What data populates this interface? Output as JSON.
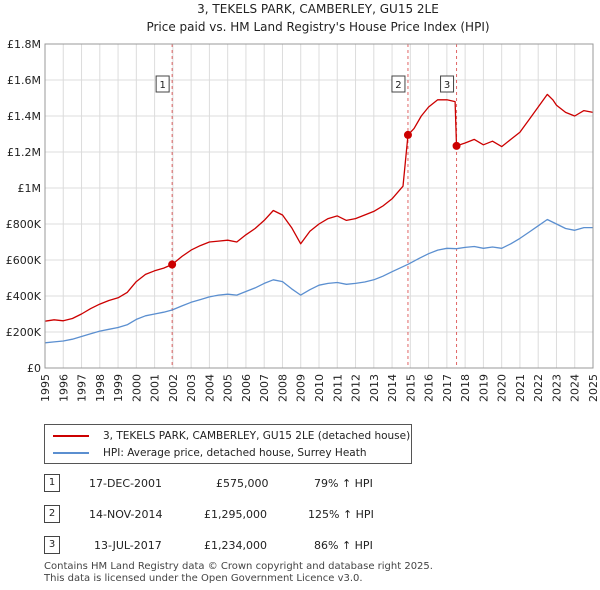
{
  "chart_data": {
    "type": "line",
    "title": "3, TEKELS PARK, CAMBERLEY, GU15 2LE",
    "subtitle": "Price paid vs. HM Land Registry's House Price Index (HPI)",
    "xlim": [
      1995,
      2025
    ],
    "ylim": [
      0,
      1800000
    ],
    "x_ticks": [
      "1995",
      "1996",
      "1997",
      "1998",
      "1999",
      "2000",
      "2001",
      "2002",
      "2003",
      "2004",
      "2005",
      "2006",
      "2007",
      "2008",
      "2009",
      "2010",
      "2011",
      "2012",
      "2013",
      "2014",
      "2015",
      "2016",
      "2017",
      "2018",
      "2019",
      "2020",
      "2021",
      "2022",
      "2023",
      "2024",
      "2025"
    ],
    "y_ticks": [
      {
        "value": 0,
        "label": "£0"
      },
      {
        "value": 200000,
        "label": "£200K"
      },
      {
        "value": 400000,
        "label": "£400K"
      },
      {
        "value": 600000,
        "label": "£600K"
      },
      {
        "value": 800000,
        "label": "£800K"
      },
      {
        "value": 1000000,
        "label": "£1M"
      },
      {
        "value": 1200000,
        "label": "£1.2M"
      },
      {
        "value": 1400000,
        "label": "£1.4M"
      },
      {
        "value": 1600000,
        "label": "£1.6M"
      },
      {
        "value": 1800000,
        "label": "£1.8M"
      }
    ],
    "series": [
      {
        "name": "3, TEKELS PARK, CAMBERLEY, GU15 2LE (detached house)",
        "color": "#cc0000",
        "points": [
          [
            1995.0,
            260000
          ],
          [
            1995.5,
            268000
          ],
          [
            1996.0,
            262000
          ],
          [
            1996.5,
            275000
          ],
          [
            1997.0,
            300000
          ],
          [
            1997.5,
            330000
          ],
          [
            1998.0,
            355000
          ],
          [
            1998.5,
            375000
          ],
          [
            1999.0,
            390000
          ],
          [
            1999.5,
            420000
          ],
          [
            2000.0,
            480000
          ],
          [
            2000.5,
            520000
          ],
          [
            2001.0,
            540000
          ],
          [
            2001.5,
            555000
          ],
          [
            2001.96,
            575000
          ],
          [
            2002.5,
            620000
          ],
          [
            2003.0,
            655000
          ],
          [
            2003.5,
            680000
          ],
          [
            2004.0,
            700000
          ],
          [
            2004.5,
            705000
          ],
          [
            2005.0,
            710000
          ],
          [
            2005.5,
            700000
          ],
          [
            2006.0,
            740000
          ],
          [
            2006.5,
            775000
          ],
          [
            2007.0,
            820000
          ],
          [
            2007.5,
            875000
          ],
          [
            2008.0,
            850000
          ],
          [
            2008.5,
            780000
          ],
          [
            2009.0,
            690000
          ],
          [
            2009.5,
            760000
          ],
          [
            2010.0,
            800000
          ],
          [
            2010.5,
            830000
          ],
          [
            2011.0,
            845000
          ],
          [
            2011.5,
            820000
          ],
          [
            2012.0,
            830000
          ],
          [
            2012.5,
            850000
          ],
          [
            2013.0,
            870000
          ],
          [
            2013.5,
            900000
          ],
          [
            2014.0,
            940000
          ],
          [
            2014.6,
            1010000
          ],
          [
            2014.87,
            1295000
          ],
          [
            2015.2,
            1330000
          ],
          [
            2015.6,
            1400000
          ],
          [
            2016.0,
            1450000
          ],
          [
            2016.5,
            1490000
          ],
          [
            2017.0,
            1490000
          ],
          [
            2017.45,
            1480000
          ],
          [
            2017.53,
            1234000
          ],
          [
            2018.0,
            1250000
          ],
          [
            2018.5,
            1270000
          ],
          [
            2019.0,
            1240000
          ],
          [
            2019.5,
            1260000
          ],
          [
            2020.0,
            1230000
          ],
          [
            2020.5,
            1270000
          ],
          [
            2021.0,
            1310000
          ],
          [
            2021.5,
            1380000
          ],
          [
            2022.0,
            1450000
          ],
          [
            2022.5,
            1520000
          ],
          [
            2022.8,
            1490000
          ],
          [
            2023.0,
            1460000
          ],
          [
            2023.5,
            1420000
          ],
          [
            2024.0,
            1400000
          ],
          [
            2024.5,
            1430000
          ],
          [
            2025.0,
            1420000
          ]
        ]
      },
      {
        "name": "HPI: Average price, detached house, Surrey Heath",
        "color": "#5b8fd0",
        "points": [
          [
            1995.0,
            140000
          ],
          [
            1995.5,
            145000
          ],
          [
            1996.0,
            150000
          ],
          [
            1996.5,
            160000
          ],
          [
            1997.0,
            175000
          ],
          [
            1997.5,
            190000
          ],
          [
            1998.0,
            205000
          ],
          [
            1998.5,
            215000
          ],
          [
            1999.0,
            225000
          ],
          [
            1999.5,
            240000
          ],
          [
            2000.0,
            270000
          ],
          [
            2000.5,
            290000
          ],
          [
            2001.0,
            300000
          ],
          [
            2001.5,
            310000
          ],
          [
            2001.96,
            322000
          ],
          [
            2002.5,
            345000
          ],
          [
            2003.0,
            365000
          ],
          [
            2003.5,
            380000
          ],
          [
            2004.0,
            395000
          ],
          [
            2004.5,
            405000
          ],
          [
            2005.0,
            410000
          ],
          [
            2005.5,
            405000
          ],
          [
            2006.0,
            425000
          ],
          [
            2006.5,
            445000
          ],
          [
            2007.0,
            470000
          ],
          [
            2007.5,
            490000
          ],
          [
            2008.0,
            480000
          ],
          [
            2008.5,
            440000
          ],
          [
            2009.0,
            405000
          ],
          [
            2009.5,
            435000
          ],
          [
            2010.0,
            460000
          ],
          [
            2010.5,
            470000
          ],
          [
            2011.0,
            475000
          ],
          [
            2011.5,
            465000
          ],
          [
            2012.0,
            470000
          ],
          [
            2012.5,
            478000
          ],
          [
            2013.0,
            490000
          ],
          [
            2013.5,
            510000
          ],
          [
            2014.0,
            535000
          ],
          [
            2014.87,
            576000
          ],
          [
            2015.5,
            610000
          ],
          [
            2016.0,
            635000
          ],
          [
            2016.5,
            655000
          ],
          [
            2017.0,
            665000
          ],
          [
            2017.53,
            663000
          ],
          [
            2018.0,
            670000
          ],
          [
            2018.5,
            675000
          ],
          [
            2019.0,
            665000
          ],
          [
            2019.5,
            672000
          ],
          [
            2020.0,
            665000
          ],
          [
            2020.5,
            690000
          ],
          [
            2021.0,
            720000
          ],
          [
            2021.5,
            755000
          ],
          [
            2022.0,
            790000
          ],
          [
            2022.5,
            825000
          ],
          [
            2023.0,
            800000
          ],
          [
            2023.5,
            775000
          ],
          [
            2024.0,
            765000
          ],
          [
            2024.5,
            780000
          ],
          [
            2025.0,
            780000
          ]
        ]
      }
    ],
    "sale_markers": [
      {
        "label": "1",
        "x": 2001.96,
        "price": 575000
      },
      {
        "label": "2",
        "x": 2014.87,
        "price": 1295000
      },
      {
        "label": "3",
        "x": 2017.53,
        "price": 1234000
      }
    ]
  },
  "legend": {
    "items": [
      {
        "label": "3, TEKELS PARK, CAMBERLEY, GU15 2LE (detached house)",
        "color": "#cc0000"
      },
      {
        "label": "HPI: Average price, detached house, Surrey Heath",
        "color": "#5b8fd0"
      }
    ]
  },
  "sales": [
    {
      "num": "1",
      "date": "17-DEC-2001",
      "price": "£575,000",
      "hpi": "79% ↑ HPI"
    },
    {
      "num": "2",
      "date": "14-NOV-2014",
      "price": "£1,295,000",
      "hpi": "125% ↑ HPI"
    },
    {
      "num": "3",
      "date": "13-JUL-2017",
      "price": "£1,234,000",
      "hpi": "86% ↑ HPI"
    }
  ],
  "footer": {
    "line1": "Contains HM Land Registry data © Crown copyright and database right 2025.",
    "line2": "This data is licensed under the Open Government Licence v3.0."
  }
}
